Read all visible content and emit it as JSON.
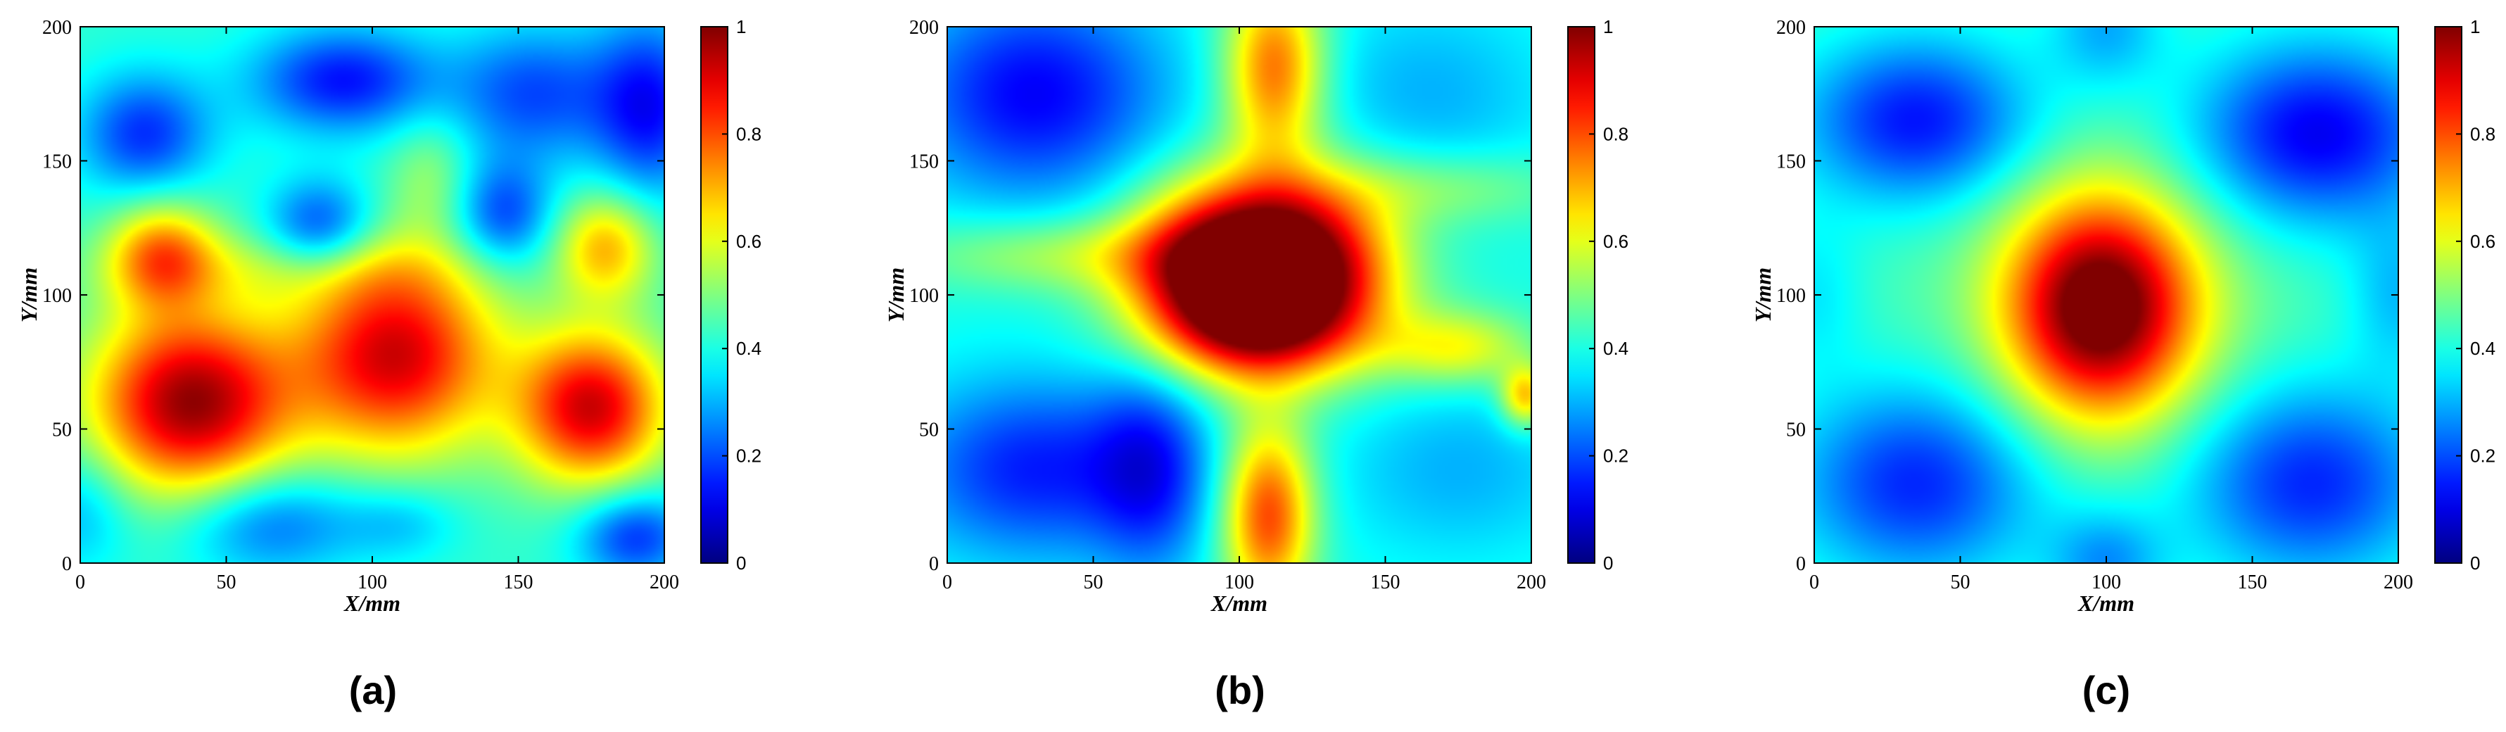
{
  "chart_data": [
    {
      "type": "heatmap",
      "panel_label": "(a)",
      "xlabel": "X/mm",
      "ylabel": "Y/mm",
      "xlim": [
        0,
        200
      ],
      "ylim": [
        0,
        200
      ],
      "xticks": [
        0,
        50,
        100,
        150,
        200
      ],
      "yticks": [
        0,
        50,
        100,
        150,
        200
      ],
      "colorbar": {
        "min": 0,
        "max": 1,
        "ticks": [
          0,
          0.2,
          0.4,
          0.6,
          0.8,
          1
        ],
        "colormap": "jet"
      },
      "base_level": 0.42,
      "features": [
        {
          "x": 38,
          "y": 60,
          "sx": 24,
          "sy": 24,
          "amp": 0.56
        },
        {
          "x": 108,
          "y": 78,
          "sx": 24,
          "sy": 26,
          "amp": 0.5
        },
        {
          "x": 175,
          "y": 58,
          "sx": 18,
          "sy": 20,
          "amp": 0.5
        },
        {
          "x": 28,
          "y": 115,
          "sx": 13,
          "sy": 14,
          "amp": 0.32
        },
        {
          "x": 180,
          "y": 118,
          "sx": 12,
          "sy": 14,
          "amp": 0.28
        },
        {
          "x": 70,
          "y": 110,
          "sx": 40,
          "sy": 10,
          "amp": 0.1
        },
        {
          "x": 90,
          "y": 180,
          "sx": 22,
          "sy": 14,
          "amp": -0.28
        },
        {
          "x": 22,
          "y": 160,
          "sx": 16,
          "sy": 16,
          "amp": -0.25
        },
        {
          "x": 155,
          "y": 175,
          "sx": 20,
          "sy": 18,
          "amp": -0.22
        },
        {
          "x": 195,
          "y": 170,
          "sx": 14,
          "sy": 24,
          "amp": -0.28
        },
        {
          "x": 82,
          "y": 125,
          "sx": 13,
          "sy": 13,
          "amp": -0.25
        },
        {
          "x": 145,
          "y": 130,
          "sx": 12,
          "sy": 14,
          "amp": -0.23
        },
        {
          "x": 120,
          "y": 145,
          "sx": 10,
          "sy": 16,
          "amp": 0.1
        },
        {
          "x": 65,
          "y": 15,
          "sx": 22,
          "sy": 14,
          "amp": -0.2
        },
        {
          "x": 190,
          "y": 10,
          "sx": 14,
          "sy": 12,
          "amp": -0.25
        },
        {
          "x": 0,
          "y": 20,
          "sx": 12,
          "sy": 16,
          "amp": -0.12
        },
        {
          "x": 110,
          "y": 15,
          "sx": 14,
          "sy": 10,
          "amp": -0.1
        }
      ]
    },
    {
      "type": "heatmap",
      "panel_label": "(b)",
      "xlabel": "X/mm",
      "ylabel": "Y/mm",
      "xlim": [
        0,
        200
      ],
      "ylim": [
        0,
        200
      ],
      "xticks": [
        0,
        50,
        100,
        150,
        200
      ],
      "yticks": [
        0,
        50,
        100,
        150,
        200
      ],
      "colorbar": {
        "min": 0,
        "max": 1,
        "ticks": [
          0,
          0.2,
          0.4,
          0.6,
          0.8,
          1
        ],
        "colormap": "jet"
      },
      "base_level": 0.4,
      "features": [
        {
          "x": 92,
          "y": 110,
          "sx": 22,
          "sy": 22,
          "amp": 0.55
        },
        {
          "x": 122,
          "y": 112,
          "sx": 22,
          "sy": 22,
          "amp": 0.55
        },
        {
          "x": 108,
          "y": 88,
          "sx": 26,
          "sy": 16,
          "amp": 0.3
        },
        {
          "x": 112,
          "y": 185,
          "sx": 12,
          "sy": 24,
          "amp": 0.38
        },
        {
          "x": 110,
          "y": 18,
          "sx": 11,
          "sy": 24,
          "amp": 0.42
        },
        {
          "x": 40,
          "y": 115,
          "sx": 38,
          "sy": 10,
          "amp": 0.15
        },
        {
          "x": 175,
          "y": 80,
          "sx": 18,
          "sy": 10,
          "amp": 0.22
        },
        {
          "x": 170,
          "y": 140,
          "sx": 30,
          "sy": 10,
          "amp": 0.12
        },
        {
          "x": 30,
          "y": 175,
          "sx": 32,
          "sy": 28,
          "amp": -0.28
        },
        {
          "x": 30,
          "y": 35,
          "sx": 32,
          "sy": 24,
          "amp": -0.25
        },
        {
          "x": 70,
          "y": 35,
          "sx": 14,
          "sy": 28,
          "amp": -0.2
        },
        {
          "x": 165,
          "y": 175,
          "sx": 30,
          "sy": 26,
          "amp": -0.1
        },
        {
          "x": 175,
          "y": 35,
          "sx": 30,
          "sy": 24,
          "amp": -0.1
        },
        {
          "x": 198,
          "y": 62,
          "sx": 6,
          "sy": 8,
          "amp": 0.3
        }
      ]
    },
    {
      "type": "heatmap",
      "panel_label": "(c)",
      "xlabel": "X/mm",
      "ylabel": "Y/mm",
      "xlim": [
        0,
        200
      ],
      "ylim": [
        0,
        200
      ],
      "xticks": [
        0,
        50,
        100,
        150,
        200
      ],
      "yticks": [
        0,
        50,
        100,
        150,
        200
      ],
      "colorbar": {
        "min": 0,
        "max": 1,
        "ticks": [
          0,
          0.2,
          0.4,
          0.6,
          0.8,
          1
        ],
        "colormap": "jet"
      },
      "base_level": 0.44,
      "features": [
        {
          "x": 98,
          "y": 95,
          "sx": 22,
          "sy": 28,
          "amp": 0.56
        },
        {
          "x": 100,
          "y": 100,
          "sx": 34,
          "sy": 36,
          "amp": 0.1
        },
        {
          "x": 35,
          "y": 165,
          "sx": 28,
          "sy": 22,
          "amp": -0.3
        },
        {
          "x": 172,
          "y": 160,
          "sx": 30,
          "sy": 24,
          "amp": -0.33
        },
        {
          "x": 35,
          "y": 30,
          "sx": 30,
          "sy": 26,
          "amp": -0.28
        },
        {
          "x": 170,
          "y": 30,
          "sx": 30,
          "sy": 26,
          "amp": -0.28
        },
        {
          "x": 100,
          "y": 200,
          "sx": 14,
          "sy": 16,
          "amp": -0.14
        },
        {
          "x": 100,
          "y": 0,
          "sx": 14,
          "sy": 14,
          "amp": -0.16
        },
        {
          "x": 0,
          "y": 100,
          "sx": 12,
          "sy": 20,
          "amp": -0.08
        },
        {
          "x": 200,
          "y": 100,
          "sx": 12,
          "sy": 20,
          "amp": -0.12
        }
      ]
    }
  ]
}
